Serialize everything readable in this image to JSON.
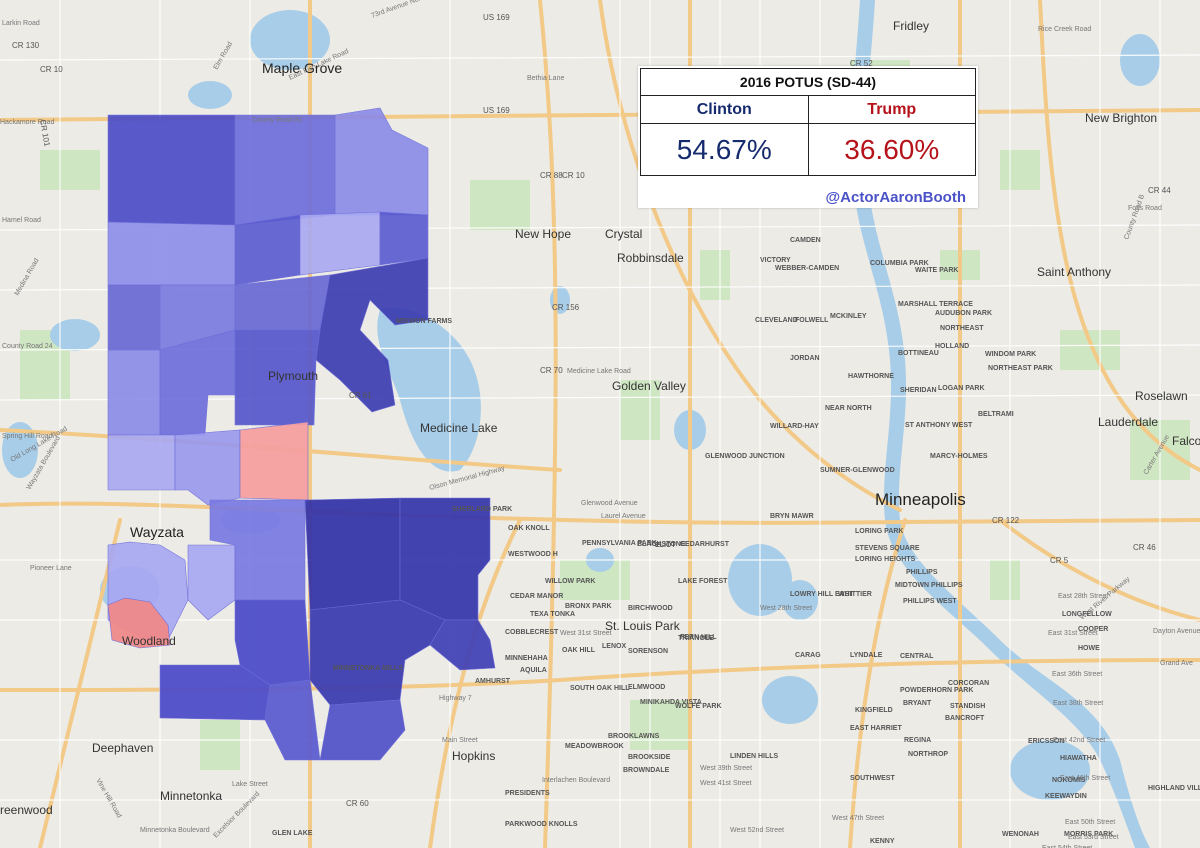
{
  "result": {
    "title": "2016 POTUS (SD-44)",
    "candidates": [
      {
        "name": "Clinton",
        "pct": "54.67%",
        "color": "#162a6e"
      },
      {
        "name": "Trump",
        "pct": "36.60%",
        "color": "#b5121b"
      }
    ],
    "credit": "@ActorAaronBooth"
  },
  "colors": {
    "strong_dem": "#3a3ab0",
    "dem": "#5a5ad0",
    "lean_dem": "#8a8ae8",
    "tilt_dem": "#a8a8f2",
    "lean_rep": "#f6a0a0",
    "rep": "#f08a8a",
    "water": "#a8cde8",
    "park": "#cfe6c2",
    "highway": "#f2c987"
  },
  "labels": {
    "cities": [
      "Maple Grove",
      "Plymouth",
      "New Hope",
      "Crystal",
      "Robbinsdale",
      "Golden Valley",
      "Minneapolis",
      "St. Louis Park",
      "Hopkins",
      "Wayzata",
      "Minnetonka",
      "Deephaven",
      "Woodland",
      "Fridley",
      "New Brighton",
      "Saint Anthony",
      "Lauderdale",
      "Medicine Lake",
      "Roselawn",
      "Falcon",
      "reenwood"
    ],
    "neighborhoods": [
      "CAMDEN",
      "VICTORY",
      "WEBBER-CAMDEN",
      "COLUMBIA PARK",
      "WAITE PARK",
      "CLEVELAND",
      "FOLWELL",
      "MCKINLEY",
      "MARSHALL TERRACE",
      "AUDUBON PARK",
      "NORTHEAST",
      "JORDAN",
      "HAWTHORNE",
      "BOTTINEAU",
      "HOLLAND",
      "WINDOM PARK",
      "NORTHEAST PARK",
      "SHERIDAN",
      "LOGAN PARK",
      "NEAR NORTH",
      "WILLARD-HAY",
      "BELTRAMI",
      "ST ANTHONY WEST",
      "SUMNER-GLENWOOD",
      "MARCY-HOLMES",
      "GLENWOOD JUNCTION",
      "BRYN MAWR",
      "LORING PARK",
      "STEVENS SQUARE",
      "LORING HEIGHTS",
      "PENNSYLVANIA PARK",
      "ELIOT",
      "BLACKSTONE",
      "CEDARHURST",
      "WESTWOOD H",
      "WILLOW PARK",
      "LAKE FOREST",
      "CEDAR MANOR",
      "BRONX PARK",
      "TEXA TONKA",
      "BIRCHWOOD",
      "FERN HILL",
      "COBBLECREST",
      "OAK HILL",
      "LENOX",
      "SORENSON",
      "TRIANGLE",
      "MINNEHAHA",
      "AQUILA",
      "SOUTH OAK HILL",
      "ELMWOOD",
      "WOLFE PARK",
      "MINIKAHDA VISTA",
      "BROOKLAWNS",
      "MEADOWBROOK",
      "BROOKSIDE",
      "BROWNDALE",
      "LINDEN HILLS",
      "PRESIDENTS",
      "PARKWOOD KNOLLS",
      "LOWRY HILL EAST",
      "WHITTIER",
      "PHILLIPS",
      "MIDTOWN PHILLIPS",
      "PHILLIPS WEST",
      "CARAG",
      "LYNDALE",
      "CENTRAL",
      "POWDERHORN PARK",
      "CORCORAN",
      "KINGFIELD",
      "BRYANT",
      "BANCROFT",
      "STANDISH",
      "EAST HARRIET",
      "REGINA",
      "ERICSSON",
      "NORTHROP",
      "HIAWATHA",
      "SOUTHWEST",
      "NOKOMIS",
      "KEEWAYDIN",
      "HIGHLAND VILLAGE",
      "KENNY",
      "WENONAH",
      "MORRIS PARK",
      "COOPER",
      "HOWE",
      "LONGFELLOW",
      "MISSION FARMS",
      "SHERLARD PARK",
      "OAK KNOLL",
      "MINNETONKA MILLS",
      "AMHURST",
      "GLEN LAKE"
    ],
    "roads": [
      "73rd Avenue North",
      "US 169",
      "Bethia Lane",
      "East Fish Lake Road",
      "Elm Road",
      "County Road 81",
      "CR 10",
      "CR 130",
      "US 169",
      "Larkin Road",
      "Hackamore Road",
      "Hamel Road",
      "Medina Road",
      "County Road 24",
      "Spring Hill Road",
      "Old Long Lake Road",
      "Wayzata Boulevard",
      "Pioneer Lane",
      "CR 101",
      "Vine Hill Road",
      "Lake Street",
      "Minnetonka Boulevard",
      "Excelsior Boulevard",
      "Highway 7",
      "Main Street",
      "Interlachen Boulevard",
      "Olson Memorial Highway",
      "Laurel Avenue",
      "Glenwood Avenue",
      "Medicine Lake Road",
      "CR 70",
      "CR 156",
      "CR 61",
      "CR 60",
      "CR 5",
      "CR 122",
      "CR 46",
      "CR 44",
      "CR 52",
      "CR 88",
      "CR 10",
      "Rice Creek Road",
      "Foss Road",
      "County Road B",
      "Carter Avenue",
      "East 28th Street",
      "East 31st Street",
      "East 36th Street",
      "East 38th Street",
      "East 42nd Street",
      "East 46th Street",
      "East 50th Street",
      "East 53rd Street",
      "East 54th Street",
      "West 28th Street",
      "West 31st Street",
      "West 39th Street",
      "West 41st Street",
      "West 47th Street",
      "West 52nd Street",
      "Dayton Avenue",
      "West River Parkway",
      "Grand Ave"
    ]
  }
}
